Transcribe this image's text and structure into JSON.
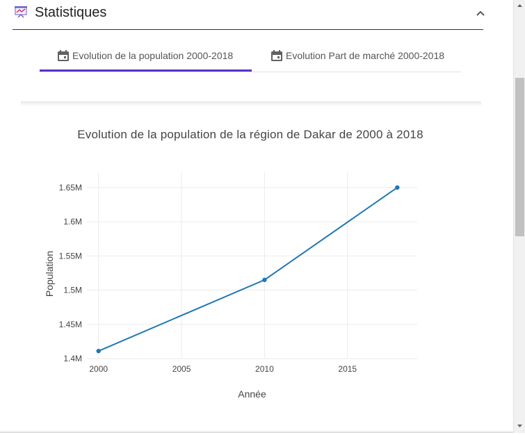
{
  "header": {
    "title": "Statistiques",
    "icon": "presentation-chart-icon"
  },
  "tabs": [
    {
      "label": "Evolution de la population 2000-2018",
      "icon": "calendar-icon",
      "active": true
    },
    {
      "label": "Evolution Part de marché 2000-2018",
      "icon": "calendar-icon",
      "active": false
    }
  ],
  "colors": {
    "accent": "#5b2fc9",
    "series": "#1f77b4"
  },
  "chart_data": {
    "type": "line",
    "title": "Evolution de la population de la région de Dakar de 2000 à 2018",
    "xlabel": "Année",
    "ylabel": "Population",
    "x": [
      2000,
      2010,
      2018
    ],
    "y": [
      1411000,
      1515000,
      1650000
    ],
    "xlim": [
      1999.3,
      2019.2
    ],
    "ylim": [
      1400000,
      1660000
    ],
    "x_ticks": [
      2000,
      2005,
      2010,
      2015
    ],
    "x_tick_labels": [
      "2000",
      "2005",
      "2010",
      "2015"
    ],
    "y_ticks": [
      1400000,
      1450000,
      1500000,
      1550000,
      1600000,
      1650000
    ],
    "y_tick_labels": [
      "1.4M",
      "1.45M",
      "1.5M",
      "1.55M",
      "1.6M",
      "1.65M"
    ],
    "grid": true,
    "markers": true
  }
}
